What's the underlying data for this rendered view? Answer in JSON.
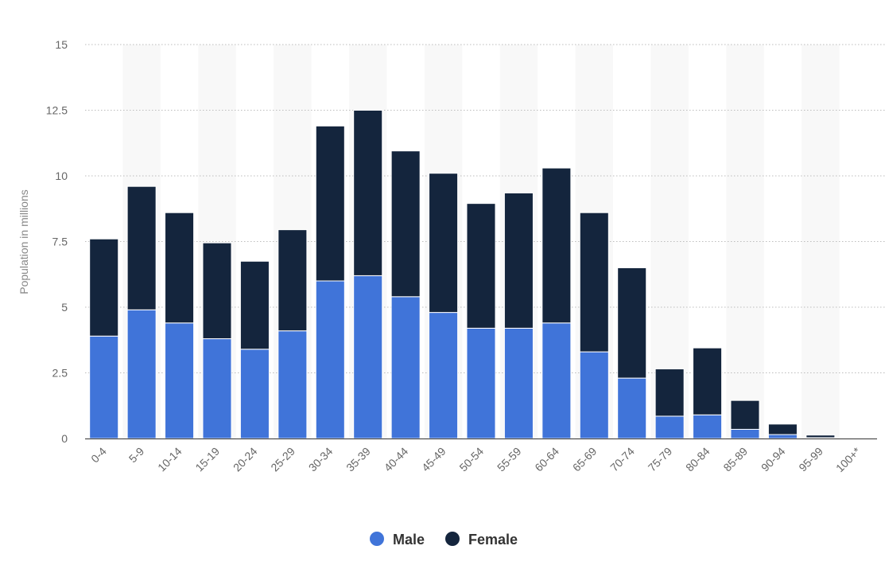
{
  "chart_data": {
    "type": "bar",
    "stacked": true,
    "categories": [
      "0-4",
      "5-9",
      "10-14",
      "15-19",
      "20-24",
      "25-29",
      "30-34",
      "35-39",
      "40-44",
      "45-49",
      "50-54",
      "55-59",
      "60-64",
      "65-69",
      "70-74",
      "75-79",
      "80-84",
      "85-89",
      "90-94",
      "95-99",
      "100+*"
    ],
    "series": [
      {
        "name": "Male",
        "color": "#4074d9",
        "values": [
          3.9,
          4.9,
          4.4,
          3.8,
          3.4,
          4.1,
          6.0,
          6.2,
          5.4,
          4.8,
          4.2,
          4.2,
          4.4,
          3.3,
          2.3,
          0.85,
          0.9,
          0.35,
          0.15,
          0.03,
          0.01
        ]
      },
      {
        "name": "Female",
        "color": "#14253d",
        "values": [
          3.7,
          4.7,
          4.2,
          3.65,
          3.35,
          3.85,
          5.9,
          6.3,
          5.55,
          5.3,
          4.75,
          5.15,
          5.9,
          5.3,
          4.2,
          1.8,
          2.55,
          1.1,
          0.4,
          0.1,
          0.02
        ]
      }
    ],
    "ylabel": "Population in millions",
    "xlabel": "",
    "ylim": [
      0,
      15
    ],
    "yticks": [
      0,
      2.5,
      5,
      7.5,
      10,
      12.5,
      15
    ],
    "ytick_labels": [
      "0",
      "2.5",
      "5",
      "7.5",
      "10",
      "12.5",
      "15"
    ],
    "grid": true,
    "legend": "bottom-center"
  }
}
